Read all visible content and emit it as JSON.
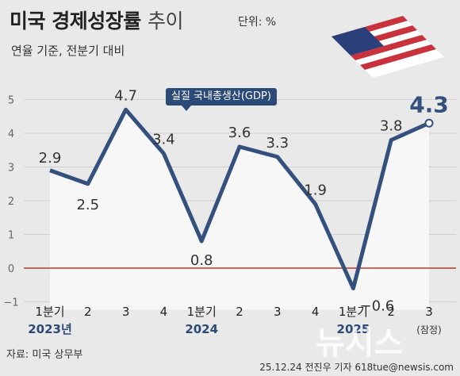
{
  "header": {
    "title_bold": "미국 경제성장률",
    "title_light": "추이",
    "unit": "단위: %",
    "subtitle": "연율 기준, 전분기 대비",
    "series_label": "실질 국내총생산(GDP)"
  },
  "footer": {
    "source": "자료: 미국 상무부",
    "credit": "25.12.24 전진우 기자 618tue@newsis.com",
    "watermark": "뉴시스"
  },
  "colors": {
    "line": "#34507d",
    "area": "#f7f7f7",
    "zero_line": "#c0392b",
    "background": "#e9e9e9",
    "year": "#2b4a78"
  },
  "chart_data": {
    "type": "line",
    "title": "미국 경제성장률 추이",
    "categories": [
      "1분기",
      "2",
      "3",
      "4",
      "1분기",
      "2",
      "3",
      "4",
      "1분기",
      "2",
      "3"
    ],
    "year_labels": [
      "2023년",
      "2024",
      "2025"
    ],
    "extra_labels": [
      "(잠정)"
    ],
    "series": [
      {
        "name": "실질 국내총생산(GDP)",
        "values": [
          2.9,
          2.5,
          4.7,
          3.4,
          0.8,
          3.6,
          3.3,
          1.9,
          -0.6,
          3.8,
          4.3
        ],
        "labels": [
          "2.9",
          "2.5",
          "4.7",
          "3.4",
          "0.8",
          "3.6",
          "3.3",
          "1.9",
          "−0.6",
          "3.8",
          "4.3"
        ]
      }
    ],
    "y_ticks": [
      -1,
      0,
      1,
      2,
      3,
      4,
      5
    ],
    "ylim": [
      -1,
      5.3
    ],
    "grid": true,
    "zero_line": true,
    "highlight_last": true
  }
}
